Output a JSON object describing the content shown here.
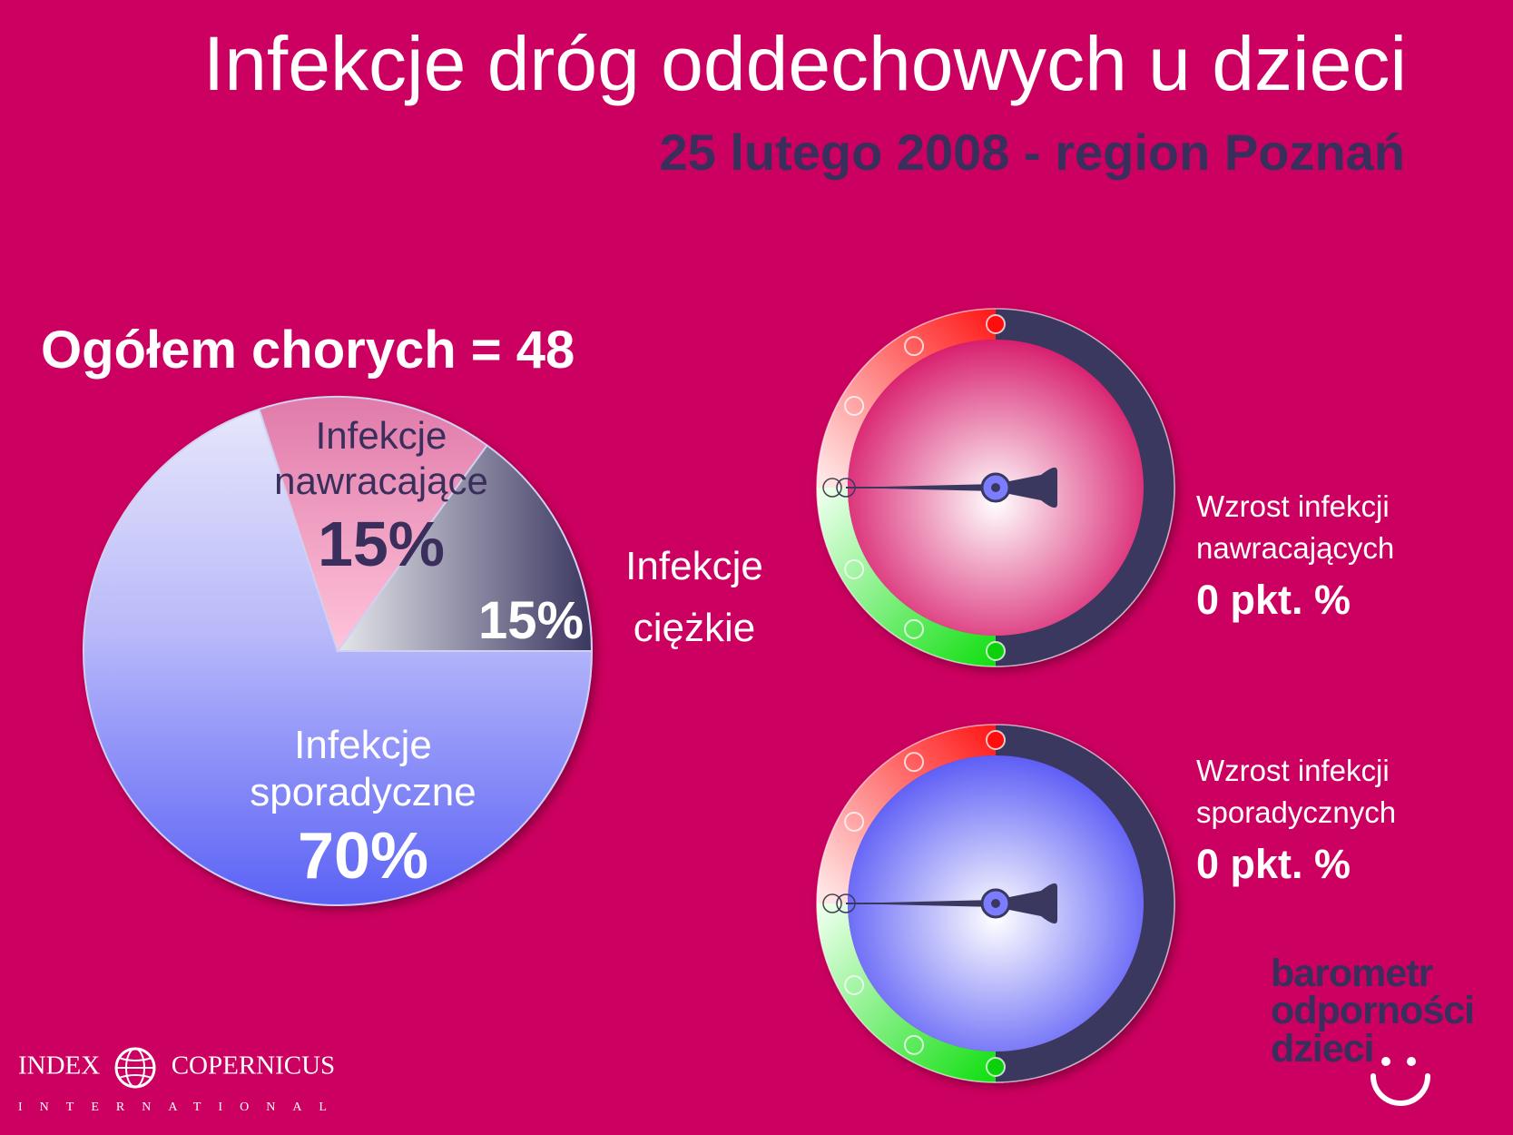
{
  "title": "Infekcje dróg oddechowych u dzieci",
  "subtitle": "25 lutego 2008 - region Poznań",
  "total_label": "Ogółem chorych = 48",
  "colors": {
    "background": "#cc0060",
    "dark": "#3a2f5c",
    "red": "#ff2a2a",
    "green": "#22e622"
  },
  "chart_data": [
    {
      "type": "pie",
      "slices": [
        {
          "name": "Infekcje nawracające",
          "value": 15,
          "label_line1": "Infekcje",
          "label_line2": "nawracające",
          "label_pct": "15%"
        },
        {
          "name": "Infekcje ciężkie",
          "value": 15,
          "label_line1": "Infekcje",
          "label_line2": "ciężkie",
          "label_pct": "15%"
        },
        {
          "name": "Infekcje sporadyczne",
          "value": 70,
          "label_line1": "Infekcje",
          "label_line2": "sporadyczne",
          "label_pct": "70%"
        }
      ]
    }
  ],
  "gauges": [
    {
      "line1": "Wzrost infekcji",
      "line2": "nawracających",
      "value_text": "0 pkt. %",
      "value": 0,
      "face": "pink"
    },
    {
      "line1": "Wzrost infekcji",
      "line2": "sporadycznych",
      "value_text": "0 pkt. %",
      "value": 0,
      "face": "blue"
    }
  ],
  "brand": {
    "line1": "barometr",
    "line2": "odporności",
    "line3": "dzieci"
  },
  "logo": {
    "left": "INDEX",
    "right": "COPERNICUS",
    "bottom": "INTERNATIONAL"
  }
}
